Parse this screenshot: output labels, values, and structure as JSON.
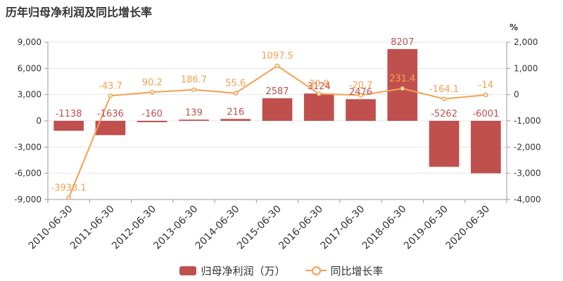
{
  "title": "历年归母净利润及同比增长率",
  "colors": {
    "bar": "#c0504d",
    "line": "#f5a04f",
    "axis": "#999999",
    "grid": "#e6e6e6",
    "text": "#333333"
  },
  "chart_data": {
    "type": "bar",
    "categories": [
      "2010-06-30",
      "2011-06-30",
      "2012-06-30",
      "2013-06-30",
      "2014-06-30",
      "2015-06-30",
      "2016-06-30",
      "2017-06-30",
      "2018-06-30",
      "2019-06-30",
      "2020-06-30"
    ],
    "series": [
      {
        "name": "归母净利润（万）",
        "type": "bar",
        "axis": "left",
        "values": [
          -1138,
          -1636,
          -160,
          139,
          216,
          2587,
          3124,
          2476,
          8207,
          -5262,
          -6001
        ]
      },
      {
        "name": "同比增长率",
        "type": "line",
        "axis": "right",
        "values": [
          -3938.1,
          -43.7,
          90.2,
          186.7,
          55.6,
          1097.5,
          30.8,
          -20.7,
          231.4,
          -164.1,
          -14
        ]
      }
    ],
    "y_left": {
      "min": -9000,
      "max": 9000,
      "ticks": [
        -9000,
        -6000,
        -3000,
        0,
        3000,
        6000,
        9000
      ],
      "tick_labels": [
        "-9,000",
        "-6,000",
        "-3,000",
        "0",
        "3,000",
        "6,000",
        "9,000"
      ]
    },
    "y_right": {
      "unit": "%",
      "min": -4000,
      "max": 2000,
      "ticks": [
        -4000,
        -3000,
        -2000,
        -1000,
        0,
        1000,
        2000
      ],
      "tick_labels": [
        "-4,000",
        "-3,000",
        "-2,000",
        "-1,000",
        "0",
        "1,000",
        "2,000"
      ]
    },
    "legend_position": "bottom-center"
  }
}
